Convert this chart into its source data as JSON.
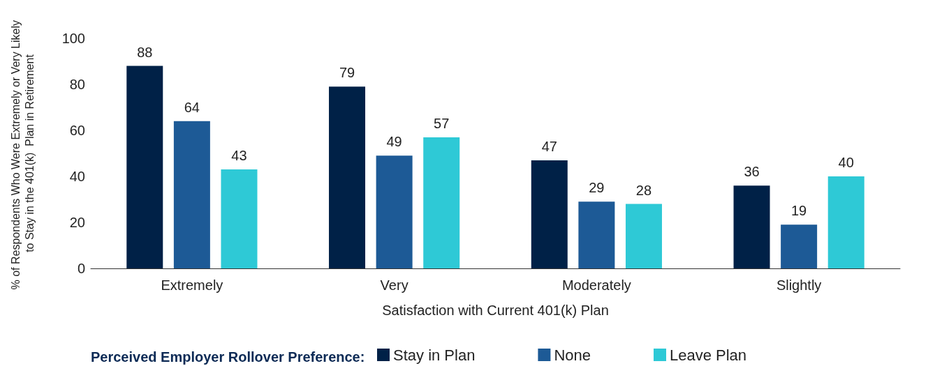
{
  "chart_data": {
    "type": "bar",
    "xlabel": "Satisfaction with Current 401(k) Plan",
    "ylabel": "% of Respondents Who Were Extremely or Very Likely to Stay in the 401(k)  Plan in Retirement",
    "legend_title": "Perceived Employer Rollover Preference:",
    "categories": [
      "Extremely",
      "Very",
      "Moderately",
      "Slightly"
    ],
    "series": [
      {
        "name": "Stay in Plan",
        "color": "#002147",
        "values": [
          88,
          79,
          47,
          36
        ]
      },
      {
        "name": "None",
        "color": "#1d5a96",
        "values": [
          64,
          49,
          29,
          19
        ]
      },
      {
        "name": "Leave Plan",
        "color": "#2ec9d6",
        "values": [
          43,
          57,
          28,
          40
        ]
      }
    ],
    "ylim": [
      0,
      100
    ],
    "yticks": [
      0,
      20,
      40,
      60,
      80,
      100
    ],
    "grid": false,
    "legend": "bottom",
    "data_labels": true
  }
}
